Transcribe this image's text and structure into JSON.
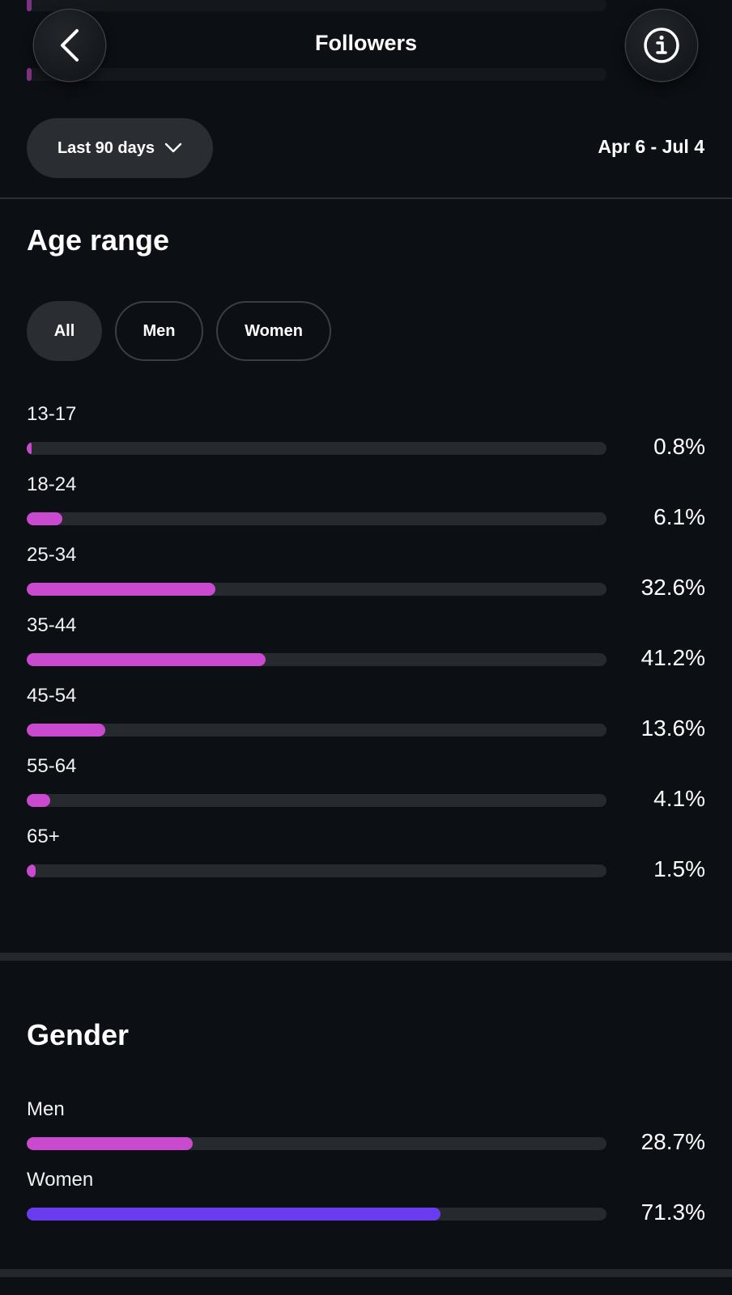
{
  "header": {
    "title": "Followers"
  },
  "filter": {
    "range_label": "Last 90 days",
    "date_range": "Apr 6 - Jul 4"
  },
  "age": {
    "title": "Age range",
    "chips": [
      "All",
      "Men",
      "Women"
    ],
    "active_chip": "All",
    "rows": [
      {
        "label": "13-17",
        "pct": "0.8%",
        "value": 0.8
      },
      {
        "label": "18-24",
        "pct": "6.1%",
        "value": 6.1
      },
      {
        "label": "25-34",
        "pct": "32.6%",
        "value": 32.6
      },
      {
        "label": "35-44",
        "pct": "41.2%",
        "value": 41.2
      },
      {
        "label": "45-54",
        "pct": "13.6%",
        "value": 13.6
      },
      {
        "label": "55-64",
        "pct": "4.1%",
        "value": 4.1
      },
      {
        "label": "65+",
        "pct": "1.5%",
        "value": 1.5
      }
    ]
  },
  "gender": {
    "title": "Gender",
    "rows": [
      {
        "label": "Men",
        "pct": "28.7%",
        "value": 28.7
      },
      {
        "label": "Women",
        "pct": "71.3%",
        "value": 71.3
      }
    ]
  },
  "colors": {
    "age_bar": "#c94acf",
    "men_bar": "#c94acf",
    "women_bar": "#6a3cf0"
  },
  "icons": {
    "back": "chevron-left-icon",
    "info": "info-circle-icon",
    "dropdown": "chevron-down-icon"
  }
}
